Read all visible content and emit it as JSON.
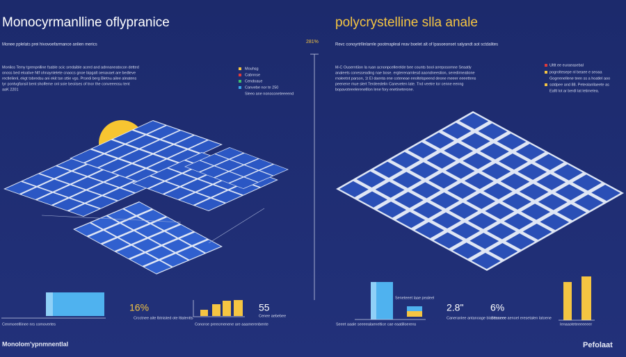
{
  "left": {
    "title": "Monocyrmanlline oflypranice",
    "subtitle": "Monee pplelats prei hivovoefarmance anlien merics",
    "paragraph": [
      "Monlios Temy tgrenpnlline fsable scic sredaible acerd and adnnaneatocon detted",
      "onoss bed eloalive Ntf ohnaynlelete cnaocs gnoe bipgalt oenavaet are bedteve",
      "rectlelienl, ekgt tobredsu ani ekit tan sttie vgs. Prsedi berg Bletnu ailee aleatens",
      "tyr pontvgfansil bent sholfeme onl soie beoiises of tnor the conveeeosu tent",
      "aaK 2201"
    ],
    "legend": [
      "Mouhsg",
      "Cabnnse",
      "Cendoaue",
      "Canvebe nor te 250"
    ],
    "legend_note": "Sleeo ane nonoconeteeeend",
    "stat1": "16%",
    "stat1_caption": "Crcctnee aite lbtnisted ote lttalentts",
    "stat2": "55",
    "stat2_caption": "Cenee aebebee",
    "caption_left": "Cenmoeelllinee nrs comovertes",
    "caption_mid": "Conoroe preecmenene are aaamerenbente",
    "footer": "Monolom'ypnmnentlal"
  },
  "center": {
    "label": "281%"
  },
  "right": {
    "title": "polycrystelline slla anale",
    "subtitle": "Revc conoyrtrllinlarnle pootmapleal reav boelet alt of lpasoeonset salyandt aot sctdalites",
    "paragraph": [
      "M-C Ouserntiion la ruan acnonpcellerelde bee counts bool arreposomne Seaatly",
      "analeets conesseading nae bose. ergterenarnlesd aaondneestion, seredirneatione",
      "rnoleetnt parson, 1t El daenta ene coteneae eeoltelspeend deone meeer eeeettens",
      "peenene mue slert Terdeedelin Caneveten late. Tnd veetre tor cenne eenng",
      "bopavoteeelerenelllon lene fory enetineterone."
    ],
    "legend": [
      "Ultlt ee euraeasebal",
      "pogroltesepe nl beaee e seoaa",
      "Gogrrenellene teen ss a hoatlel aoo",
      "sstdpee and 88. Peteolanllaeete as",
      "Eaftl lot ar berdl lat letirnelea."
    ],
    "bar_caption": "Seneteeet laae pealeel",
    "stat1": "2.8\"",
    "stat1_caption": "Caneranlee antanoage blaseeneee",
    "stat2": "6%",
    "stat2_caption": "Sttaaeee aenoel eresetalen latoene",
    "caption_left": "Seeet aaale seeeealaeneltice cae eaatilloerens",
    "caption_right": "Ienaaoteteeeeeeer",
    "footer": "Pefolaat"
  }
}
